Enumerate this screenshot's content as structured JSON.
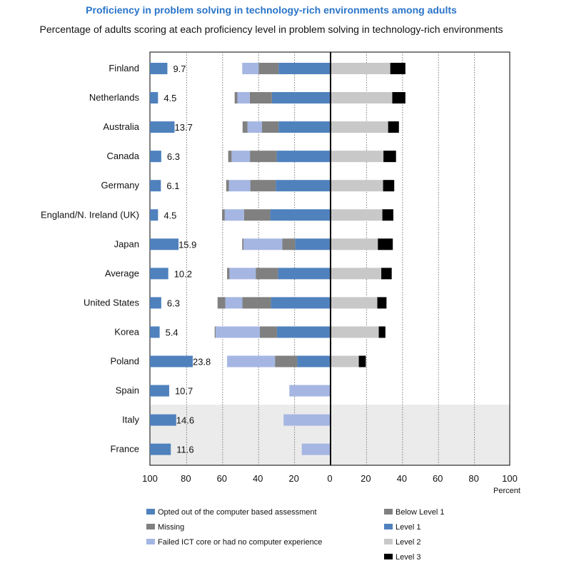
{
  "header": {
    "title": "Proficiency in problem solving in technology-rich environments among adults",
    "subtitle": "Percentage of adults scoring at each proficiency level in problem solving in technology-rich environments"
  },
  "colors": {
    "opted_out": "#4f81bd",
    "missing": "#808080",
    "failed_ict": "#a5b6e3",
    "below_level1": "#808080",
    "level1": "#4f81bd",
    "level2": "#c8c8c8",
    "level3": "#000000",
    "shade": "#ebebeb"
  },
  "chart_data": {
    "type": "bar",
    "title": "Proficiency in problem solving in technology-rich environments among adults",
    "subtitle": "Percentage of adults scoring at each proficiency level in problem solving in technology-rich environments",
    "xlabel": "Percent",
    "x_ticks": [
      "100",
      "80",
      "60",
      "40",
      "20",
      "0",
      "20",
      "40",
      "60",
      "80",
      "100"
    ],
    "xlim": [
      -100,
      100
    ],
    "grid": true,
    "legend_position": "bottom",
    "opted_out_panel": {
      "xlim": [
        0,
        100
      ],
      "description_series": "Opted out of the computer based assessment"
    },
    "categories": [
      "Finland",
      "Netherlands",
      "Australia",
      "Canada",
      "Germany",
      "England/N. Ireland (UK)",
      "Japan",
      "Average",
      "United States",
      "Korea",
      "Poland",
      "Spain",
      "Italy",
      "France"
    ],
    "series": [
      {
        "name": "Opted out of the computer based assessment",
        "values": [
          9.7,
          4.5,
          13.7,
          6.3,
          6.1,
          4.5,
          15.9,
          10.2,
          6.3,
          5.4,
          23.8,
          10.7,
          14.6,
          11.6
        ],
        "labels": [
          "9.7",
          "4.5",
          "13.7",
          "6.3",
          "6.1",
          "4.5",
          "15.9",
          "10.2",
          "6.3",
          "5.4",
          "23.8",
          "10.7",
          "14.6",
          "11.6"
        ]
      },
      {
        "name": "Missing",
        "values": [
          0,
          1.5,
          2.7,
          1.9,
          1.5,
          1.5,
          0.7,
          1.3,
          4.3,
          0.5,
          0,
          0,
          0,
          0
        ]
      },
      {
        "name": "Failed ICT core or had no computer experience",
        "values": [
          9.1,
          6.9,
          8.1,
          10.2,
          11.9,
          10.7,
          21.6,
          14.6,
          9.5,
          24.6,
          26.6,
          22.9,
          26.1,
          16.0
        ]
      },
      {
        "name": "Below Level 1",
        "values": [
          11.1,
          12.3,
          9.2,
          14.8,
          14.1,
          14.6,
          7.1,
          12.4,
          15.9,
          9.5,
          12.3,
          0,
          0,
          0
        ]
      },
      {
        "name": "Level 1",
        "values": [
          28.9,
          32.6,
          28.9,
          30.0,
          30.5,
          33.5,
          19.7,
          29.2,
          33.1,
          29.8,
          18.6,
          0,
          0,
          0
        ]
      },
      {
        "name": "Level 2",
        "values": [
          33.2,
          34.3,
          32.0,
          29.4,
          29.2,
          28.8,
          26.3,
          28.2,
          26.0,
          26.8,
          15.7,
          0,
          0,
          0
        ]
      },
      {
        "name": "Level 3",
        "values": [
          8.4,
          7.3,
          6.0,
          7.0,
          6.2,
          6.1,
          8.3,
          5.8,
          5.1,
          3.7,
          3.9,
          0,
          0,
          0
        ]
      }
    ],
    "shaded_categories": [
      "Italy",
      "France"
    ]
  },
  "legend": [
    {
      "label": "Opted out of the computer based assessment",
      "color_key": "opted_out"
    },
    {
      "label": "Missing",
      "color_key": "missing"
    },
    {
      "label": "Failed ICT core or had no computer experience",
      "color_key": "failed_ict"
    },
    {
      "label": "Below Level 1",
      "color_key": "below_level1"
    },
    {
      "label": "Level 1",
      "color_key": "level1"
    },
    {
      "label": "Level 2",
      "color_key": "level2"
    },
    {
      "label": "Level 3",
      "color_key": "level3"
    }
  ]
}
